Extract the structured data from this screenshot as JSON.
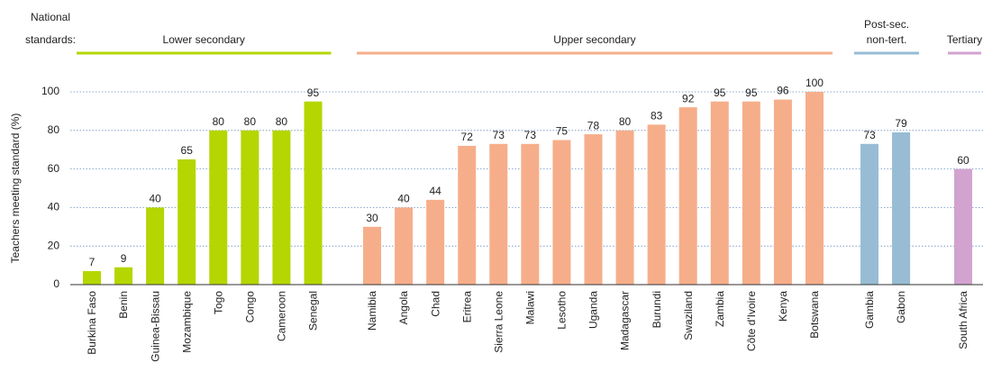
{
  "chart_data": {
    "type": "bar",
    "group_label": [
      "National",
      "standards:"
    ],
    "y_label": "Teachers meeting standard (%)",
    "ylim": [
      0,
      100
    ],
    "yticks": [
      0,
      20,
      40,
      60,
      80,
      100
    ],
    "grid": true,
    "groups": [
      {
        "name": [
          "Lower secondary"
        ],
        "color": "#b5d600",
        "categories": [
          "Burkina Faso",
          "Benin",
          "Guinea-Bissau",
          "Mozambique",
          "Togo",
          "Congo",
          "Cameroon",
          "Senegal"
        ],
        "values": [
          7,
          9,
          40,
          65,
          80,
          80,
          80,
          95
        ]
      },
      {
        "name": [
          "Upper secondary"
        ],
        "color": "#f6ae8a",
        "categories": [
          "Namibia",
          "Angola",
          "Chad",
          "Eritrea",
          "Sierra Leone",
          "Malawi",
          "Lesotho",
          "Uganda",
          "Madagascar",
          "Burundi",
          "Swaziland",
          "Zambia",
          "Côte d'Ivoire",
          "Kenya",
          "Botswana"
        ],
        "values": [
          30,
          40,
          44,
          72,
          73,
          73,
          75,
          78,
          80,
          83,
          92,
          95,
          95,
          96,
          100
        ]
      },
      {
        "name": [
          "Post-sec.",
          "non-tert."
        ],
        "color": "#97bcd4",
        "categories": [
          "Gambia",
          "Gabon"
        ],
        "values": [
          73,
          79
        ]
      },
      {
        "name": [
          "Tertiary"
        ],
        "color": "#d3a3d0",
        "categories": [
          "South Africa"
        ],
        "values": [
          60
        ]
      }
    ]
  }
}
